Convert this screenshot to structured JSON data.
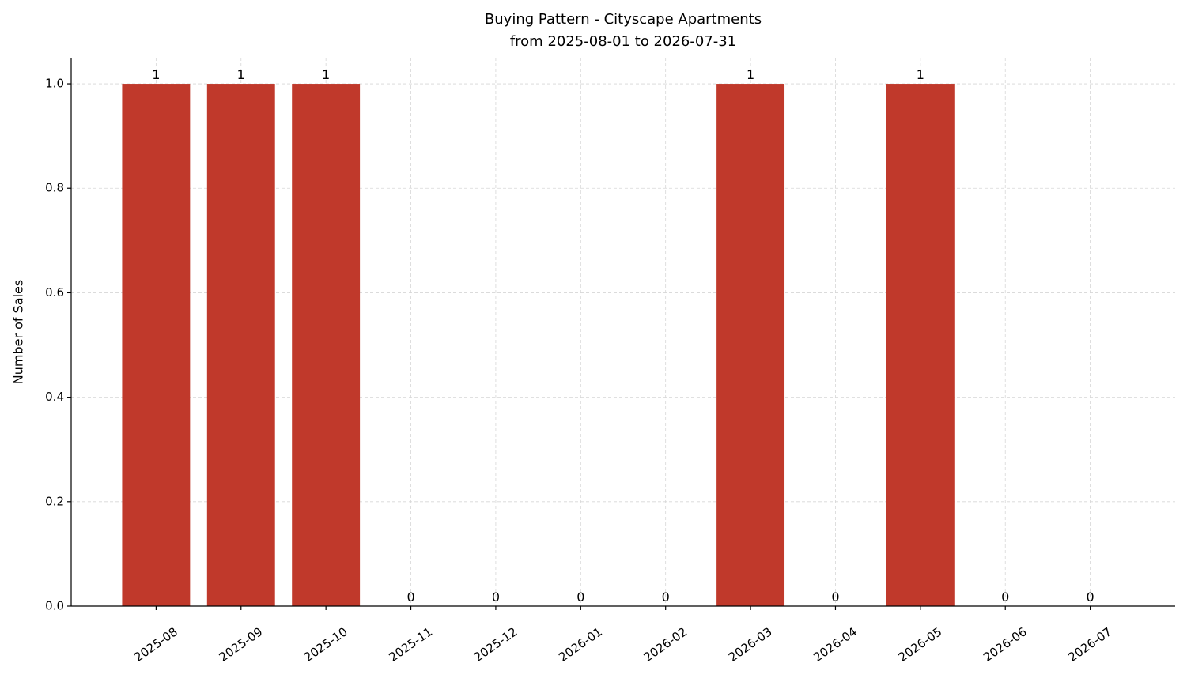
{
  "chart_data": {
    "type": "bar",
    "title": "Buying Pattern - Cityscape Apartments",
    "subtitle": "from 2025-08-01 to 2026-07-31",
    "y_label": "Number of Sales",
    "categories": [
      "2025-08",
      "2025-09",
      "2025-10",
      "2025-11",
      "2025-12",
      "2026-01",
      "2026-02",
      "2026-03",
      "2026-04",
      "2026-05",
      "2026-06",
      "2026-07"
    ],
    "values": [
      1,
      1,
      1,
      0,
      0,
      0,
      0,
      1,
      0,
      1,
      0,
      0
    ],
    "color": "#c0392b",
    "ylim": [
      0,
      1.05
    ],
    "yticks": [
      {
        "value": 0,
        "label": "0.0"
      },
      0.2,
      0.4,
      0.6,
      0.8,
      {
        "value": 1,
        "label": "1.0"
      }
    ],
    "grid": true
  }
}
